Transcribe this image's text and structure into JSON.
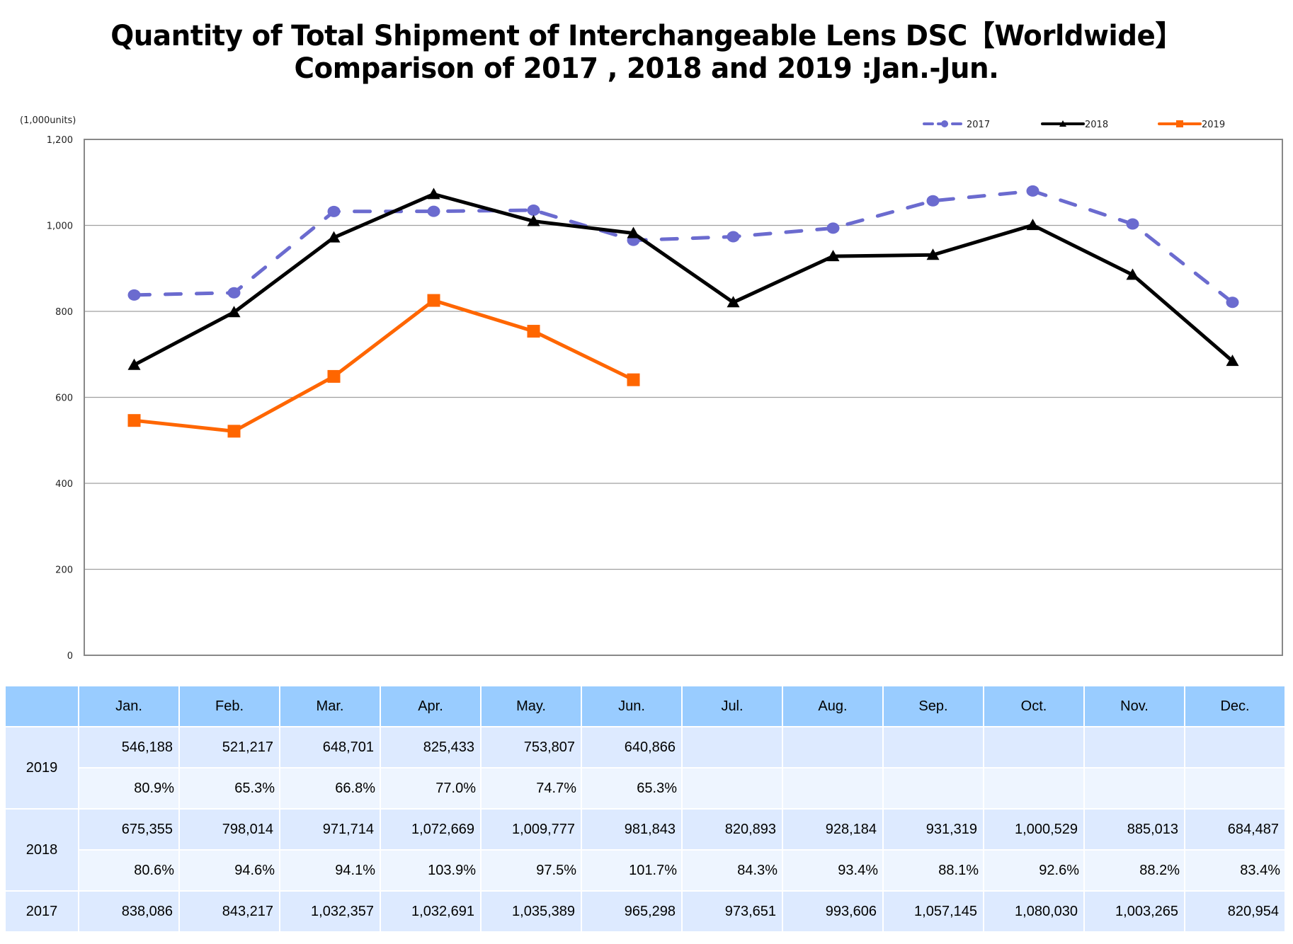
{
  "chart_data": {
    "type": "line",
    "title": "Quantity of Total Shipment of Interchangeable Lens DSC【Worldwide】",
    "subtitle": "Comparison of 2017 , 2018 and 2019 :Jan.-Jun.",
    "xlabel": "",
    "ylabel": "(1,000units)",
    "ylim": [
      0,
      1200
    ],
    "yticks": [
      0,
      200,
      400,
      600,
      800,
      1000,
      1200
    ],
    "ytick_labels": [
      "0",
      "200",
      "400",
      "600",
      "800",
      "1,000",
      "1,200"
    ],
    "grid": true,
    "legend_position": "top-right",
    "categories": [
      "Jan.",
      "Feb.",
      "Mar.",
      "Apr.",
      "May.",
      "Jun.",
      "Jul.",
      "Aug.",
      "Sep.",
      "Oct.",
      "Nov.",
      "Dec."
    ],
    "series": [
      {
        "name": "2017",
        "color": "#6b6bcf",
        "style": "dashed",
        "marker": "circle",
        "values": [
          838.086,
          843.217,
          1032.357,
          1032.691,
          1035.389,
          965.298,
          973.651,
          993.606,
          1057.145,
          1080.03,
          1003.265,
          820.954
        ]
      },
      {
        "name": "2018",
        "color": "#000000",
        "style": "solid",
        "marker": "triangle",
        "values": [
          675.355,
          798.014,
          971.714,
          1072.669,
          1009.777,
          981.843,
          820.893,
          928.184,
          931.319,
          1000.529,
          885.013,
          684.487
        ]
      },
      {
        "name": "2019",
        "color": "#ff6600",
        "style": "solid",
        "marker": "square",
        "values": [
          546.188,
          521.217,
          648.701,
          825.433,
          753.807,
          640.866,
          null,
          null,
          null,
          null,
          null,
          null
        ]
      }
    ]
  },
  "table": {
    "header": [
      "",
      "Jan.",
      "Feb.",
      "Mar.",
      "Apr.",
      "May.",
      "Jun.",
      "Jul.",
      "Aug.",
      "Sep.",
      "Oct.",
      "Nov.",
      "Dec."
    ],
    "rows": [
      {
        "year": "2019",
        "units": [
          "546,188",
          "521,217",
          "648,701",
          "825,433",
          "753,807",
          "640,866",
          "",
          "",
          "",
          "",
          "",
          ""
        ],
        "pct": [
          "80.9%",
          "65.3%",
          "66.8%",
          "77.0%",
          "74.7%",
          "65.3%",
          "",
          "",
          "",
          "",
          "",
          ""
        ]
      },
      {
        "year": "2018",
        "units": [
          "675,355",
          "798,014",
          "971,714",
          "1,072,669",
          "1,009,777",
          "981,843",
          "820,893",
          "928,184",
          "931,319",
          "1,000,529",
          "885,013",
          "684,487"
        ],
        "pct": [
          "80.6%",
          "94.6%",
          "94.1%",
          "103.9%",
          "97.5%",
          "101.7%",
          "84.3%",
          "93.4%",
          "88.1%",
          "92.6%",
          "88.2%",
          "83.4%"
        ]
      },
      {
        "year": "2017",
        "units": [
          "838,086",
          "843,217",
          "1,032,357",
          "1,032,691",
          "1,035,389",
          "965,298",
          "973,651",
          "993,606",
          "1,057,145",
          "1,080,030",
          "1,003,265",
          "820,954"
        ]
      }
    ]
  }
}
